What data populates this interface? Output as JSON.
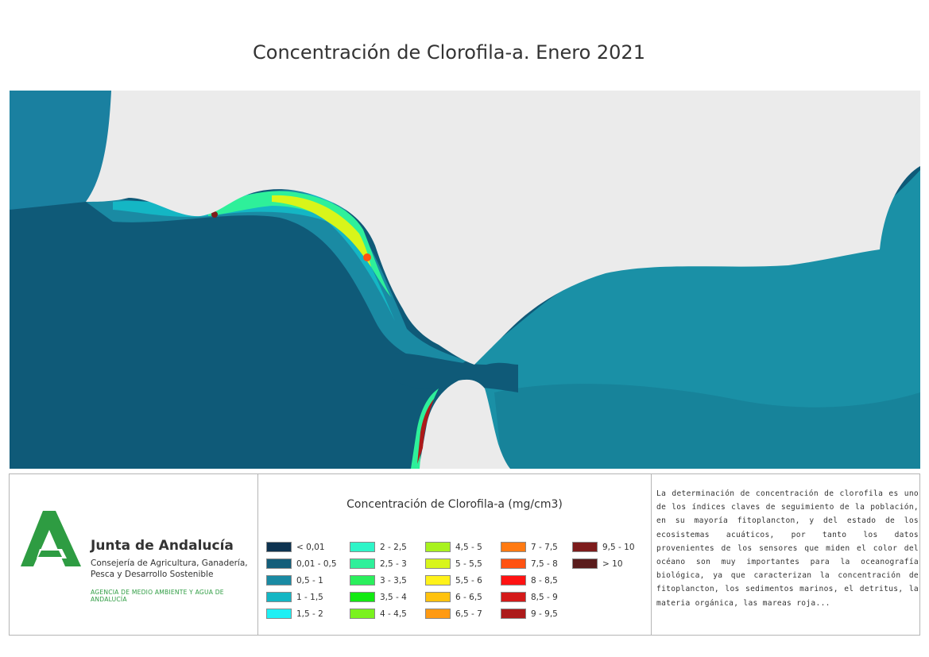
{
  "title": "Concentración de Clorofila-a. Enero 2021",
  "map": {
    "land_color": "#ebebeb",
    "ocean_deep_color": "#0f5a78",
    "shelf_color": "#1a8aa0",
    "mediterranean_color": "#1a90a6"
  },
  "logo": {
    "icon": "junta-andalucia-a-logo-icon",
    "org_name": "Junta de Andalucía",
    "dept_line1": "Consejería de Agricultura, Ganadería,",
    "dept_line2": "Pesca y Desarrollo Sostenible",
    "agency": "AGENCIA DE MEDIO AMBIENTE Y AGUA DE ANDALUCÍA",
    "brand_color": "#2e9c42"
  },
  "legend": {
    "title": "Concentración de Clorofila-a (mg/cm3)",
    "items": [
      {
        "label": "< 0,01",
        "color": "#0e3350"
      },
      {
        "label": "0,01 - 0,5",
        "color": "#135e7a"
      },
      {
        "label": "0,5 - 1",
        "color": "#1a8aa3"
      },
      {
        "label": "1 - 1,5",
        "color": "#14b6c4"
      },
      {
        "label": "1,5 - 2",
        "color": "#1ef0f4"
      },
      {
        "label": "2 - 2,5",
        "color": "#2ef5c8"
      },
      {
        "label": "2,5 - 3",
        "color": "#2ef09a"
      },
      {
        "label": "3 - 3,5",
        "color": "#2aef5c"
      },
      {
        "label": "3,5 - 4",
        "color": "#12ea12"
      },
      {
        "label": "4 - 4,5",
        "color": "#7af21e"
      },
      {
        "label": "4,5 - 5",
        "color": "#a8f21e"
      },
      {
        "label": "5 - 5,5",
        "color": "#d8f51a"
      },
      {
        "label": "5,5 - 6",
        "color": "#fff21a"
      },
      {
        "label": "6 - 6,5",
        "color": "#ffc20e"
      },
      {
        "label": "6,5 - 7",
        "color": "#ff9a12"
      },
      {
        "label": "7 - 7,5",
        "color": "#ff7a12"
      },
      {
        "label": "7,5 - 8",
        "color": "#ff5212"
      },
      {
        "label": "8 - 8,5",
        "color": "#ff1212"
      },
      {
        "label": "8,5 - 9",
        "color": "#d41a1a"
      },
      {
        "label": "9 - 9,5",
        "color": "#ad1a1a"
      },
      {
        "label": "9,5 - 10",
        "color": "#7d1c1c"
      },
      {
        "label": "> 10",
        "color": "#5a1c1c"
      }
    ]
  },
  "description": "La determinación de concentración de clorofila es uno de los índices claves de seguimiento de la población, en su mayoría fitoplancton, y del estado de los ecosistemas acuáticos, por tanto los datos provenientes de los sensores que miden el color del océano son muy importantes para la oceanografía biológica, ya que caracterizan la concentración de fitoplancton, los sedimentos marinos, el detritus, la materia orgánica, las mareas roja..."
}
